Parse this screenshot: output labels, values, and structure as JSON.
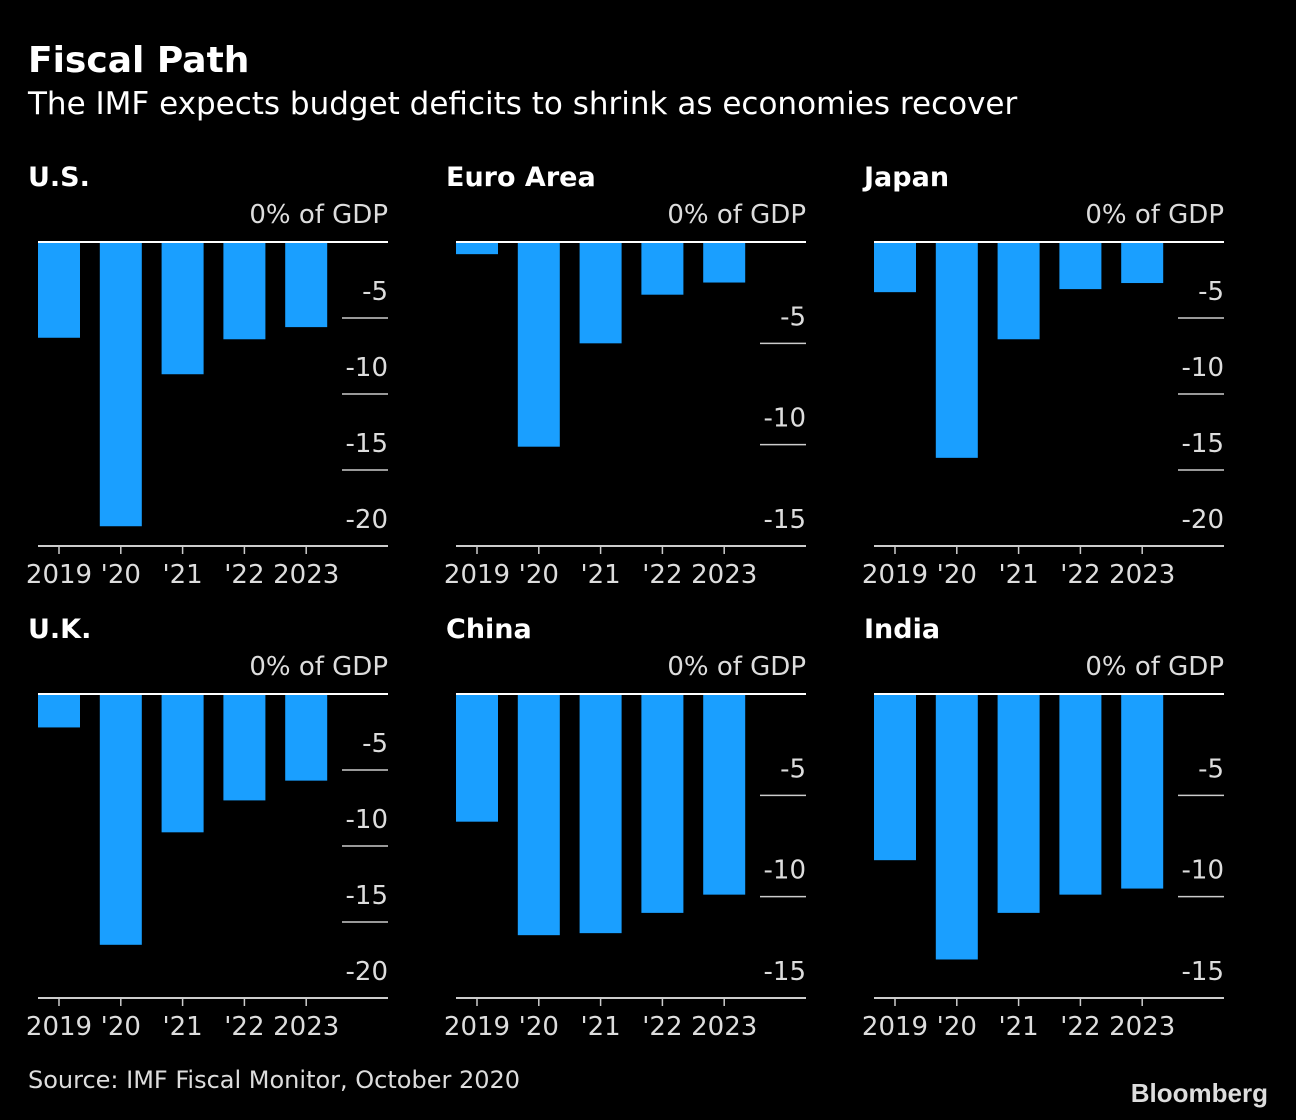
{
  "title": "Fiscal Path",
  "subtitle": "The IMF expects budget deficits to shrink as economies recover",
  "source": "Source: IMF Fiscal Monitor, October 2020",
  "logo": "Bloomberg",
  "bar_color": "#1a9fff",
  "chart_data": [
    {
      "type": "bar",
      "title": "U.S.",
      "ylabel": "0% of GDP",
      "categories": [
        "2019",
        "'20",
        "'21",
        "'22",
        "2023"
      ],
      "values": [
        -6.3,
        -18.7,
        -8.7,
        -6.4,
        -5.6
      ],
      "ylim": [
        -20,
        0
      ],
      "yticks": [
        -5,
        -10,
        -15,
        -20
      ]
    },
    {
      "type": "bar",
      "title": "Euro Area",
      "ylabel": "0% of GDP",
      "categories": [
        "2019",
        "'20",
        "'21",
        "'22",
        "2023"
      ],
      "values": [
        -0.6,
        -10.1,
        -5.0,
        -2.6,
        -2.0
      ],
      "ylim": [
        -15,
        0
      ],
      "yticks": [
        -5,
        -10,
        -15
      ]
    },
    {
      "type": "bar",
      "title": "Japan",
      "ylabel": "0% of GDP",
      "categories": [
        "2019",
        "'20",
        "'21",
        "'22",
        "2023"
      ],
      "values": [
        -3.3,
        -14.2,
        -6.4,
        -3.1,
        -2.7
      ],
      "ylim": [
        -20,
        0
      ],
      "yticks": [
        -5,
        -10,
        -15,
        -20
      ]
    },
    {
      "type": "bar",
      "title": "U.K.",
      "ylabel": "0% of GDP",
      "categories": [
        "2019",
        "'20",
        "'21",
        "'22",
        "2023"
      ],
      "values": [
        -2.2,
        -16.5,
        -9.1,
        -7.0,
        -5.7
      ],
      "ylim": [
        -20,
        0
      ],
      "yticks": [
        -5,
        -10,
        -15,
        -20
      ]
    },
    {
      "type": "bar",
      "title": "China",
      "ylabel": "0% of GDP",
      "categories": [
        "2019",
        "'20",
        "'21",
        "'22",
        "2023"
      ],
      "values": [
        -6.3,
        -11.9,
        -11.8,
        -10.8,
        -9.9
      ],
      "ylim": [
        -15,
        0
      ],
      "yticks": [
        -5,
        -10,
        -15
      ]
    },
    {
      "type": "bar",
      "title": "India",
      "ylabel": "0% of GDP",
      "categories": [
        "2019",
        "'20",
        "'21",
        "'22",
        "2023"
      ],
      "values": [
        -8.2,
        -13.1,
        -10.8,
        -9.9,
        -9.6
      ],
      "ylim": [
        -15,
        0
      ],
      "yticks": [
        -5,
        -10,
        -15
      ]
    }
  ]
}
